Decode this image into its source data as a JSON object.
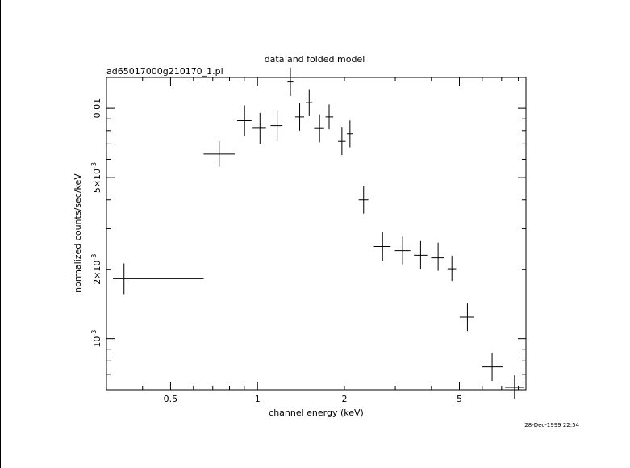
{
  "chart_data": {
    "type": "scatter",
    "title": "data and folded model",
    "subtitle": "ad65017000g210170_1.pi",
    "xlabel": "channel energy (keV)",
    "ylabel": "normalized counts/sec/keV",
    "xscale": "log",
    "yscale": "log",
    "xlim": [
      0.3,
      8.5
    ],
    "ylim": [
      0.0006,
      0.0136
    ],
    "x_tick_labels": [
      "0.5",
      "1",
      "2",
      "5"
    ],
    "y_tick_labels": [
      "10^-3",
      "2×10^-3",
      "5×10^-3",
      "0.01"
    ],
    "grid": false,
    "timestamp": "28-Dec-1999 22:54",
    "series": [
      {
        "points": [
          {
            "x": 0.345,
            "xlo": 0.316,
            "xhi": 0.651,
            "y": 0.00182,
            "ylo": 0.00156,
            "yhi": 0.00212
          },
          {
            "x": 0.737,
            "xlo": 0.651,
            "xhi": 0.834,
            "y": 0.00633,
            "ylo": 0.00557,
            "yhi": 0.00719
          },
          {
            "x": 0.902,
            "xlo": 0.851,
            "xhi": 0.953,
            "y": 0.00883,
            "ylo": 0.00758,
            "yhi": 0.0103
          },
          {
            "x": 1.02,
            "xlo": 0.962,
            "xhi": 1.07,
            "y": 0.00819,
            "ylo": 0.00702,
            "yhi": 0.00955
          },
          {
            "x": 1.17,
            "xlo": 1.11,
            "xhi": 1.22,
            "y": 0.00841,
            "ylo": 0.0072,
            "yhi": 0.00979
          },
          {
            "x": 1.3,
            "xlo": 1.27,
            "xhi": 1.33,
            "y": 0.013,
            "ylo": 0.0113,
            "yhi": 0.015
          },
          {
            "x": 1.4,
            "xlo": 1.35,
            "xhi": 1.45,
            "y": 0.00917,
            "ylo": 0.008,
            "yhi": 0.0105
          },
          {
            "x": 1.51,
            "xlo": 1.47,
            "xhi": 1.55,
            "y": 0.0106,
            "ylo": 0.00924,
            "yhi": 0.0121
          },
          {
            "x": 1.64,
            "xlo": 1.57,
            "xhi": 1.7,
            "y": 0.00817,
            "ylo": 0.00711,
            "yhi": 0.00941
          },
          {
            "x": 1.77,
            "xlo": 1.72,
            "xhi": 1.83,
            "y": 0.00917,
            "ylo": 0.0081,
            "yhi": 0.0104
          },
          {
            "x": 1.96,
            "xlo": 1.9,
            "xhi": 2.02,
            "y": 0.00718,
            "ylo": 0.00626,
            "yhi": 0.00824
          },
          {
            "x": 2.09,
            "xlo": 2.04,
            "xhi": 2.14,
            "y": 0.00775,
            "ylo": 0.00677,
            "yhi": 0.00885
          },
          {
            "x": 2.33,
            "xlo": 2.24,
            "xhi": 2.42,
            "y": 0.004,
            "ylo": 0.00349,
            "yhi": 0.00459
          },
          {
            "x": 2.71,
            "xlo": 2.53,
            "xhi": 2.89,
            "y": 0.00251,
            "ylo": 0.00218,
            "yhi": 0.00289
          },
          {
            "x": 3.18,
            "xlo": 2.99,
            "xhi": 3.38,
            "y": 0.00241,
            "ylo": 0.0021,
            "yhi": 0.00277
          },
          {
            "x": 3.67,
            "xlo": 3.48,
            "xhi": 3.87,
            "y": 0.0023,
            "ylo": 0.00201,
            "yhi": 0.00265
          },
          {
            "x": 4.22,
            "xlo": 3.99,
            "xhi": 4.43,
            "y": 0.00224,
            "ylo": 0.00197,
            "yhi": 0.00261
          },
          {
            "x": 4.71,
            "xlo": 4.55,
            "xhi": 4.87,
            "y": 0.00201,
            "ylo": 0.00178,
            "yhi": 0.00229
          },
          {
            "x": 5.33,
            "xlo": 5.01,
            "xhi": 5.63,
            "y": 0.00124,
            "ylo": 0.00108,
            "yhi": 0.00142
          },
          {
            "x": 6.49,
            "xlo": 6.0,
            "xhi": 7.05,
            "y": 0.000754,
            "ylo": 0.000655,
            "yhi": 0.000869
          },
          {
            "x": 7.76,
            "xlo": 7.2,
            "xhi": 8.39,
            "y": 0.000615,
            "ylo": 0.000548,
            "yhi": 0.000693
          }
        ]
      }
    ]
  }
}
